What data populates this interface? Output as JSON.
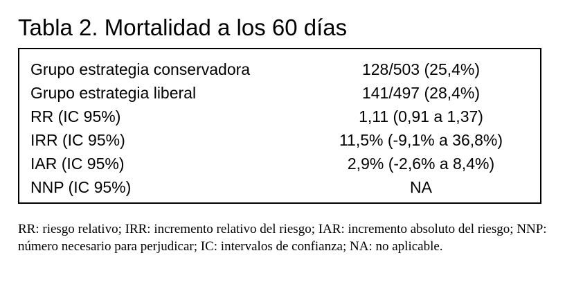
{
  "title": "Tabla 2. Mortalidad a los 60 días",
  "rows": [
    {
      "label": "Grupo estrategia conservadora",
      "value": "128/503 (25,4%)"
    },
    {
      "label": "Grupo estrategia liberal",
      "value": "141/497 (28,4%)"
    },
    {
      "label": "RR (IC 95%)",
      "value": "1,11 (0,91 a 1,37)"
    },
    {
      "label": "IRR (IC 95%)",
      "value": "11,5% (-9,1% a 36,8%)"
    },
    {
      "label": "IAR (IC 95%)",
      "value": "2,9% (-2,6% a 8,4%)"
    },
    {
      "label": "NNP (IC 95%)",
      "value": "NA"
    }
  ],
  "footnote": "RR: riesgo relativo; IRR: incremento relativo del riesgo; IAR: incremento absoluto del riesgo; NNP: número necesario para perjudicar; IC: intervalos de confianza; NA: no aplicable."
}
